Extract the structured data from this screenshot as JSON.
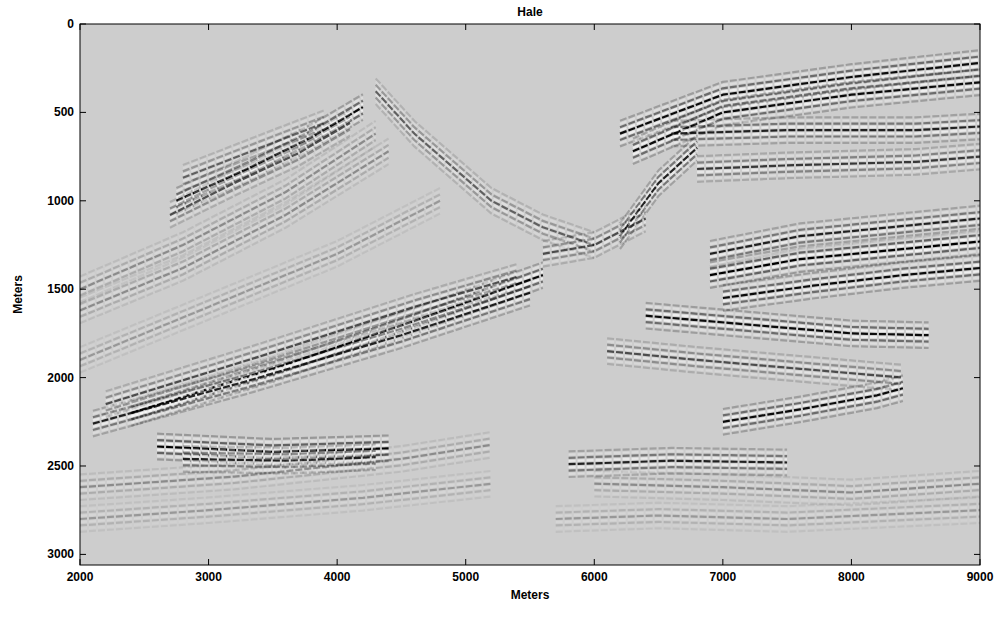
{
  "chart_data": {
    "type": "seismic",
    "title": "Hale",
    "x_label": "Meters",
    "y_label": "Meters",
    "xlim": [
      2000,
      9000
    ],
    "ylim": [
      0,
      3060
    ],
    "xticks": [
      2000,
      3000,
      4000,
      5000,
      6000,
      7000,
      8000,
      9000
    ],
    "yticks": [
      0,
      500,
      1000,
      1500,
      2000,
      2500,
      3000
    ],
    "color": "#cdcdcd",
    "reflectors": [
      {
        "x": [
          2750,
          3300,
          3800,
          4200
        ],
        "y": [
          1000,
          820,
          640,
          470
        ],
        "amplitude": 0.9
      },
      {
        "x": [
          2700,
          3200,
          3700,
          4100
        ],
        "y": [
          1080,
          900,
          730,
          560
        ],
        "amplitude": 0.6
      },
      {
        "x": [
          2800,
          3400,
          3900
        ],
        "y": [
          870,
          700,
          560
        ],
        "amplitude": 0.5
      },
      {
        "x": [
          2000,
          2800,
          3600,
          4300
        ],
        "y": [
          1500,
          1250,
          950,
          620
        ],
        "amplitude": 0.3
      },
      {
        "x": [
          2000,
          2800,
          3600,
          4400
        ],
        "y": [
          1620,
          1380,
          1080,
          720
        ],
        "amplitude": 0.3
      },
      {
        "x": [
          2000,
          3000,
          4000,
          4800
        ],
        "y": [
          1900,
          1600,
          1300,
          1000
        ],
        "amplitude": 0.25
      },
      {
        "x": [
          2400,
          3500,
          4600,
          5600
        ],
        "y": [
          2200,
          1950,
          1680,
          1420
        ],
        "amplitude": 0.9
      },
      {
        "x": [
          2100,
          3300,
          4500,
          5500
        ],
        "y": [
          2260,
          2020,
          1760,
          1520
        ],
        "amplitude": 0.8
      },
      {
        "x": [
          2200,
          3400,
          4600,
          5400
        ],
        "y": [
          2150,
          1880,
          1600,
          1430
        ],
        "amplitude": 0.6
      },
      {
        "x": [
          2600,
          3500,
          4400
        ],
        "y": [
          2390,
          2420,
          2400
        ],
        "amplitude": 1.0
      },
      {
        "x": [
          2800,
          3600,
          4300
        ],
        "y": [
          2460,
          2470,
          2450
        ],
        "amplitude": 0.8
      },
      {
        "x": [
          2000,
          3200,
          4500,
          5200
        ],
        "y": [
          2620,
          2560,
          2460,
          2380
        ],
        "amplitude": 0.3
      },
      {
        "x": [
          2000,
          3000,
          4200,
          5200
        ],
        "y": [
          2800,
          2750,
          2680,
          2600
        ],
        "amplitude": 0.25
      },
      {
        "x": [
          4300,
          4600,
          5200,
          5600,
          6000
        ],
        "y": [
          380,
          620,
          1000,
          1150,
          1250
        ],
        "amplitude": 0.5
      },
      {
        "x": [
          6200,
          7000,
          8000,
          9000
        ],
        "y": [
          620,
          400,
          300,
          220
        ],
        "amplitude": 0.9
      },
      {
        "x": [
          6300,
          7000,
          8000,
          9000
        ],
        "y": [
          720,
          500,
          400,
          330
        ],
        "amplitude": 0.9
      },
      {
        "x": [
          6600,
          7500,
          8500,
          9000
        ],
        "y": [
          620,
          600,
          600,
          580
        ],
        "amplitude": 0.8
      },
      {
        "x": [
          6800,
          7500,
          8500,
          9000
        ],
        "y": [
          820,
          800,
          780,
          750
        ],
        "amplitude": 0.7
      },
      {
        "x": [
          6200,
          6500,
          6800
        ],
        "y": [
          1200,
          900,
          700
        ],
        "amplitude": 0.8
      },
      {
        "x": [
          6900,
          7600,
          8300,
          9000
        ],
        "y": [
          1300,
          1200,
          1150,
          1100
        ],
        "amplitude": 0.8
      },
      {
        "x": [
          6900,
          7600,
          8300,
          9000
        ],
        "y": [
          1420,
          1330,
          1280,
          1230
        ],
        "amplitude": 1.0
      },
      {
        "x": [
          7000,
          7700,
          8400,
          9000
        ],
        "y": [
          1550,
          1480,
          1420,
          1380
        ],
        "amplitude": 0.9
      },
      {
        "x": [
          6400,
          7200,
          8000,
          8600
        ],
        "y": [
          1650,
          1700,
          1750,
          1760
        ],
        "amplitude": 0.9
      },
      {
        "x": [
          7000,
          7600,
          8200,
          8400
        ],
        "y": [
          2250,
          2180,
          2100,
          2060
        ],
        "amplitude": 0.9
      },
      {
        "x": [
          5800,
          6600,
          7500
        ],
        "y": [
          2490,
          2470,
          2480
        ],
        "amplitude": 0.8
      },
      {
        "x": [
          6000,
          7000,
          8000,
          9000
        ],
        "y": [
          2600,
          2620,
          2650,
          2600
        ],
        "amplitude": 0.3
      },
      {
        "x": [
          5700,
          6500,
          7500,
          9000
        ],
        "y": [
          2800,
          2780,
          2800,
          2750
        ],
        "amplitude": 0.25
      },
      {
        "x": [
          5600,
          6000,
          6400
        ],
        "y": [
          1300,
          1250,
          1100
        ],
        "amplitude": 0.6
      },
      {
        "x": [
          6100,
          6800,
          7600,
          8400
        ],
        "y": [
          1850,
          1900,
          1950,
          2000
        ],
        "amplitude": 0.6
      }
    ]
  }
}
